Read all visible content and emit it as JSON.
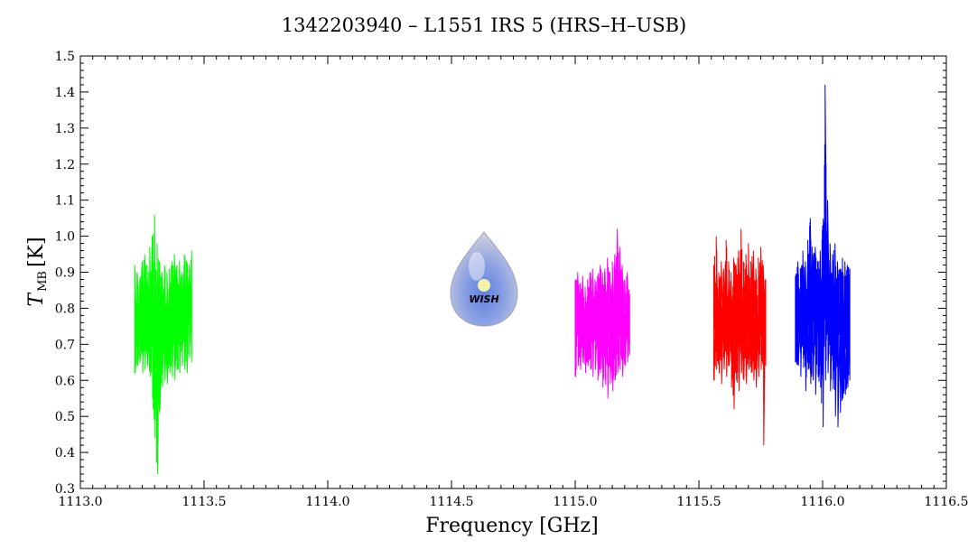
{
  "chart_data": {
    "type": "line",
    "title": "1342203940 – L1551 IRS 5 (HRS–H–USB)",
    "xlabel": "Frequency [GHz]",
    "ylabel_main": "T",
    "ylabel_sub": "MB",
    "ylabel_unit": "[K]",
    "xlim": [
      1113.0,
      1116.5
    ],
    "ylim": [
      0.3,
      1.5
    ],
    "x_ticks": [
      1113.0,
      1113.5,
      1114.0,
      1114.5,
      1115.0,
      1115.5,
      1116.0,
      1116.5
    ],
    "x_tick_labels": [
      "1113.0",
      "1113.5",
      "1114.0",
      "1114.5",
      "1115.0",
      "1115.5",
      "1116.0",
      "1116.5"
    ],
    "y_ticks": [
      0.3,
      0.4,
      0.5,
      0.6,
      0.7,
      0.8,
      0.9,
      1.0,
      1.1,
      1.2,
      1.3,
      1.4,
      1.5
    ],
    "y_tick_labels": [
      "0.3",
      "0.4",
      "0.5",
      "0.6",
      "0.7",
      "0.8",
      "0.9",
      "1.0",
      "1.1",
      "1.2",
      "1.3",
      "1.4",
      "1.5"
    ],
    "grid": false,
    "logo_text": "WISH",
    "series": [
      {
        "color": "#00ff00",
        "x": [
          1113.22,
          1113.23,
          1113.24,
          1113.25,
          1113.26,
          1113.27,
          1113.28,
          1113.29,
          1113.3,
          1113.31,
          1113.32,
          1113.33,
          1113.34,
          1113.35,
          1113.36,
          1113.37,
          1113.38,
          1113.39,
          1113.4,
          1113.41,
          1113.42,
          1113.43,
          1113.44,
          1113.45
        ],
        "y_center": [
          0.77,
          0.78,
          0.76,
          0.78,
          0.77,
          0.79,
          0.78,
          0.76,
          0.74,
          0.73,
          0.75,
          0.76,
          0.77,
          0.76,
          0.75,
          0.77,
          0.78,
          0.77,
          0.76,
          0.78,
          0.77,
          0.78,
          0.77,
          0.78
        ],
        "y_max": [
          0.92,
          0.9,
          0.88,
          0.93,
          0.95,
          0.92,
          0.97,
          1.0,
          1.06,
          0.98,
          0.93,
          0.9,
          0.92,
          0.9,
          0.91,
          0.93,
          0.95,
          0.92,
          0.93,
          0.9,
          0.95,
          0.93,
          0.92,
          0.96
        ],
        "y_min": [
          0.62,
          0.64,
          0.65,
          0.62,
          0.63,
          0.64,
          0.61,
          0.55,
          0.44,
          0.34,
          0.52,
          0.58,
          0.6,
          0.59,
          0.62,
          0.61,
          0.6,
          0.63,
          0.62,
          0.64,
          0.63,
          0.62,
          0.66,
          0.65
        ]
      },
      {
        "color": "#ff00ff",
        "x": [
          1115.0,
          1115.01,
          1115.02,
          1115.03,
          1115.04,
          1115.05,
          1115.06,
          1115.07,
          1115.08,
          1115.09,
          1115.1,
          1115.11,
          1115.12,
          1115.13,
          1115.14,
          1115.15,
          1115.16,
          1115.17,
          1115.18,
          1115.19,
          1115.2,
          1115.21,
          1115.22
        ],
        "y_center": [
          0.76,
          0.77,
          0.76,
          0.77,
          0.75,
          0.76,
          0.77,
          0.76,
          0.75,
          0.77,
          0.76,
          0.75,
          0.76,
          0.77,
          0.76,
          0.78,
          0.77,
          0.76,
          0.77,
          0.75,
          0.76,
          0.77,
          0.76
        ],
        "y_max": [
          0.88,
          0.9,
          0.87,
          0.89,
          0.86,
          0.88,
          0.9,
          0.91,
          0.88,
          0.89,
          0.92,
          0.9,
          0.91,
          0.94,
          0.9,
          0.93,
          0.95,
          1.02,
          0.97,
          0.92,
          0.88,
          0.9,
          0.84
        ],
        "y_min": [
          0.61,
          0.64,
          0.63,
          0.65,
          0.62,
          0.64,
          0.63,
          0.61,
          0.63,
          0.6,
          0.62,
          0.58,
          0.6,
          0.55,
          0.59,
          0.57,
          0.6,
          0.62,
          0.63,
          0.61,
          0.64,
          0.65,
          0.67
        ]
      },
      {
        "color": "#ff0000",
        "x": [
          1115.56,
          1115.57,
          1115.58,
          1115.59,
          1115.6,
          1115.61,
          1115.62,
          1115.63,
          1115.64,
          1115.65,
          1115.66,
          1115.67,
          1115.68,
          1115.69,
          1115.7,
          1115.71,
          1115.72,
          1115.73,
          1115.74,
          1115.75,
          1115.76,
          1115.77
        ],
        "y_center": [
          0.77,
          0.76,
          0.78,
          0.77,
          0.76,
          0.78,
          0.77,
          0.76,
          0.75,
          0.77,
          0.76,
          0.78,
          0.77,
          0.76,
          0.78,
          0.77,
          0.76,
          0.75,
          0.77,
          0.76,
          0.75,
          0.76
        ],
        "y_max": [
          0.92,
          1.0,
          0.9,
          0.93,
          0.91,
          0.99,
          0.93,
          0.9,
          0.94,
          0.92,
          0.96,
          1.02,
          0.93,
          0.95,
          0.98,
          0.93,
          0.96,
          0.91,
          0.94,
          0.97,
          0.92,
          0.88
        ],
        "y_min": [
          0.6,
          0.63,
          0.62,
          0.59,
          0.63,
          0.61,
          0.64,
          0.58,
          0.52,
          0.6,
          0.57,
          0.62,
          0.6,
          0.59,
          0.63,
          0.62,
          0.6,
          0.58,
          0.61,
          0.63,
          0.42,
          0.64
        ]
      },
      {
        "color": "#0000ff",
        "x": [
          1115.89,
          1115.9,
          1115.91,
          1115.92,
          1115.93,
          1115.94,
          1115.95,
          1115.96,
          1115.97,
          1115.98,
          1115.99,
          1116.0,
          1116.01,
          1116.02,
          1116.03,
          1116.04,
          1116.05,
          1116.06,
          1116.07,
          1116.08,
          1116.09,
          1116.1,
          1116.11
        ],
        "y_center": [
          0.77,
          0.79,
          0.78,
          0.8,
          0.79,
          0.81,
          0.8,
          0.79,
          0.8,
          0.82,
          0.81,
          0.84,
          0.9,
          0.85,
          0.8,
          0.79,
          0.8,
          0.76,
          0.75,
          0.77,
          0.78,
          0.77,
          0.76
        ],
        "y_max": [
          0.89,
          0.93,
          0.91,
          0.96,
          0.93,
          0.99,
          1.05,
          0.95,
          0.97,
          0.93,
          0.96,
          1.03,
          1.42,
          1.1,
          0.98,
          0.95,
          0.98,
          0.93,
          0.91,
          0.94,
          0.93,
          0.92,
          0.91
        ],
        "y_min": [
          0.65,
          0.64,
          0.61,
          0.66,
          0.57,
          0.63,
          0.59,
          0.6,
          0.56,
          0.61,
          0.58,
          0.47,
          0.6,
          0.62,
          0.57,
          0.6,
          0.5,
          0.47,
          0.51,
          0.55,
          0.56,
          0.58,
          0.6
        ]
      }
    ]
  }
}
